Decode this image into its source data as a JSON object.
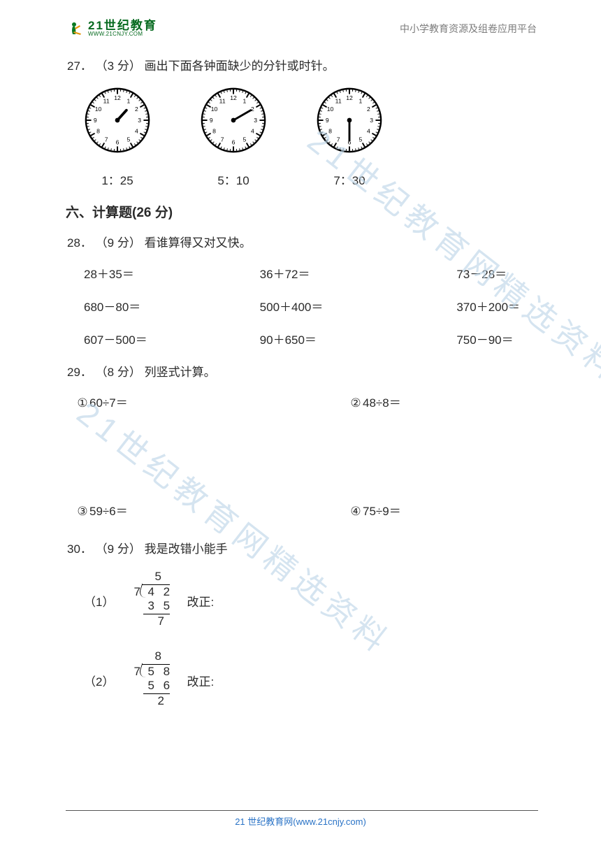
{
  "header": {
    "logo_cn": "21世纪教育",
    "logo_en": "WWW.21CNJY.COM",
    "right": "中小学教育资源及组卷应用平台"
  },
  "q27": {
    "num": "27．",
    "points": "（3 分）",
    "text": "画出下面各钟面缺少的分针或时针。",
    "clocks": [
      {
        "label": "1：25",
        "hourAngle": 42
      },
      {
        "label": "5：10",
        "minuteAngle": 60
      },
      {
        "label": "7：30",
        "minuteAngle": 180
      }
    ]
  },
  "section6": "六、计算题(26 分)",
  "q28": {
    "num": "28．",
    "points": "（9 分）",
    "text": "看谁算得又对又快。",
    "rows": [
      [
        "28＋35＝",
        "36＋72＝",
        "73－28＝"
      ],
      [
        "680－80＝",
        "500＋400＝",
        "370＋200＝"
      ],
      [
        "607－500＝",
        "90＋650＝",
        "750－90＝"
      ]
    ]
  },
  "q29": {
    "num": "29．",
    "points": "（8 分）",
    "text": "列竖式计算。",
    "items": [
      {
        "n": "①",
        "expr": "60÷7＝"
      },
      {
        "n": "②",
        "expr": "48÷8＝"
      },
      {
        "n": "③",
        "expr": "59÷6＝"
      },
      {
        "n": "④",
        "expr": "75÷9＝"
      }
    ]
  },
  "q30": {
    "num": "30．",
    "points": "（9 分）",
    "text": "我是改错小能手",
    "items": [
      {
        "label": "（1）",
        "divisor": "7",
        "dividend": "4 2",
        "quotient": "5",
        "sub": "3 5",
        "rem": "7",
        "fix": "改正:"
      },
      {
        "label": "（2）",
        "divisor": "7",
        "dividend": "5 8",
        "quotient": "8",
        "sub": "5 6",
        "rem": "2",
        "fix": "改正:"
      }
    ]
  },
  "footer": "21 世纪教育网(www.21cnjy.com)",
  "watermark": "21世纪教育网精选资料"
}
